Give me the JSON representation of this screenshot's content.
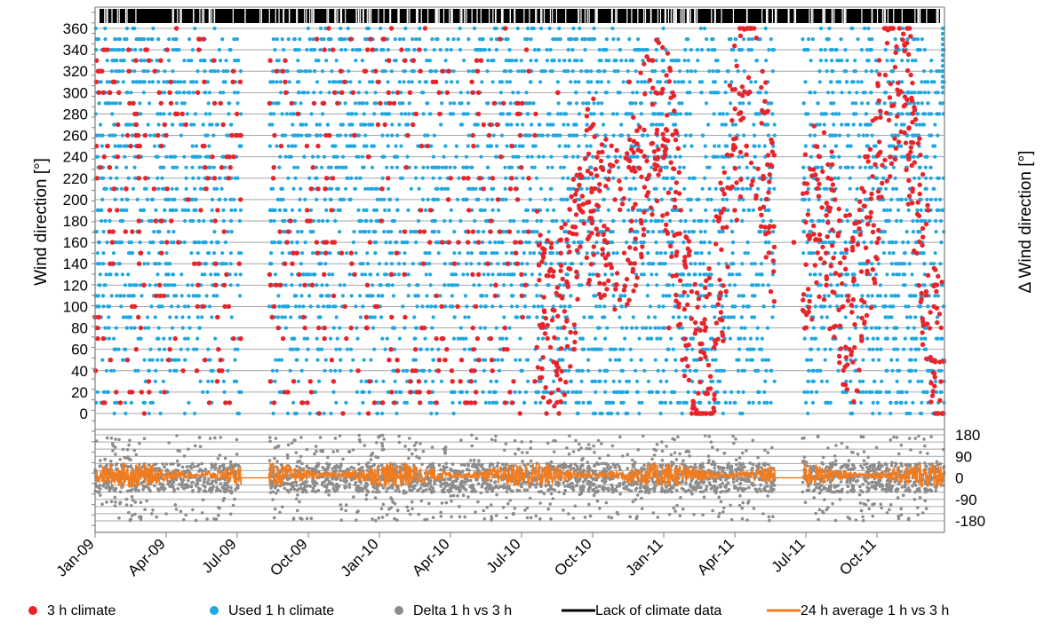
{
  "chart_data": [
    {
      "type": "scatter",
      "panel": "top",
      "ylabel": "Wind direction [°]",
      "ylim": [
        0,
        360
      ],
      "y_ticks": [
        0,
        20,
        40,
        60,
        80,
        100,
        120,
        140,
        160,
        180,
        200,
        220,
        240,
        260,
        280,
        300,
        320,
        340,
        360
      ],
      "xlim": [
        "2009-01-01",
        "2011-12-31"
      ],
      "x_tick_labels": [
        "Jan-09",
        "Apr-09",
        "Jul-09",
        "Oct-09",
        "Jan-10",
        "Apr-10",
        "Jul-10",
        "Oct-10",
        "Jan-11",
        "Apr-11",
        "Jul-11",
        "Oct-11"
      ],
      "grid": true,
      "series": [
        {
          "name": "3 h climate",
          "color": "#e8242b",
          "sampled_points": [
            {
              "x": "2009-01-05",
              "y": 320
            },
            {
              "x": "2009-01-20",
              "y": 300
            },
            {
              "x": "2009-02-10",
              "y": 210
            },
            {
              "x": "2009-03-01",
              "y": 150
            },
            {
              "x": "2009-04-15",
              "y": 280
            },
            {
              "x": "2009-05-20",
              "y": 100
            },
            {
              "x": "2009-06-10",
              "y": 40
            },
            {
              "x": "2009-10-05",
              "y": 180
            },
            {
              "x": "2009-12-01",
              "y": 260
            },
            {
              "x": "2010-02-15",
              "y": 330
            },
            {
              "x": "2010-04-01",
              "y": 200
            },
            {
              "x": "2010-06-01",
              "y": 120
            },
            {
              "x": "2010-08-20",
              "y": 300
            },
            {
              "x": "2010-09-10",
              "y": 60
            },
            {
              "x": "2010-10-15",
              "y": 230
            },
            {
              "x": "2010-11-20",
              "y": 310
            },
            {
              "x": "2010-12-20",
              "y": 330
            },
            {
              "x": "2011-01-10",
              "y": 80
            },
            {
              "x": "2011-03-15",
              "y": 180
            },
            {
              "x": "2011-04-20",
              "y": 250
            },
            {
              "x": "2011-05-20",
              "y": 175
            },
            {
              "x": "2011-06-20",
              "y": 160
            },
            {
              "x": "2011-08-01",
              "y": 120
            },
            {
              "x": "2011-09-20",
              "y": 240
            },
            {
              "x": "2011-11-20",
              "y": 210
            },
            {
              "x": "2011-12-10",
              "y": 190
            }
          ]
        },
        {
          "name": "Used 1 h climate",
          "color": "#1ea7e1",
          "sampled_points": [
            {
              "x": "2009-01-10",
              "y": 250
            },
            {
              "x": "2009-02-20",
              "y": 270
            },
            {
              "x": "2009-04-10",
              "y": 240
            },
            {
              "x": "2009-06-01",
              "y": 200
            },
            {
              "x": "2009-10-20",
              "y": 230
            },
            {
              "x": "2010-01-15",
              "y": 280
            },
            {
              "x": "2010-03-10",
              "y": 250
            },
            {
              "x": "2010-05-15",
              "y": 220
            },
            {
              "x": "2010-07-10",
              "y": 190
            },
            {
              "x": "2010-09-15",
              "y": 0
            },
            {
              "x": "2011-02-01",
              "y": 260
            },
            {
              "x": "2011-05-01",
              "y": 240
            },
            {
              "x": "2011-07-01",
              "y": 200
            },
            {
              "x": "2011-10-15",
              "y": 230
            },
            {
              "x": "2011-12-20",
              "y": 300
            }
          ]
        },
        {
          "name": "Lack of climate data",
          "color": "#000000",
          "description_points": [
            {
              "x": "2009-01-03",
              "y": 360
            },
            {
              "x": "2009-02-05",
              "y": 360
            },
            {
              "x": "2009-05-10",
              "y": 360
            },
            {
              "x": "2009-09-10",
              "y": 360
            },
            {
              "x": "2010-02-01",
              "y": 360
            },
            {
              "x": "2010-07-25",
              "y": 360
            },
            {
              "x": "2011-03-20",
              "y": 360
            },
            {
              "x": "2011-11-10",
              "y": 360
            }
          ]
        }
      ]
    },
    {
      "type": "scatter",
      "panel": "bottom",
      "ylabel": "Δ Wind direction [°]",
      "ylim": [
        -180,
        180
      ],
      "y_ticks": [
        180,
        90,
        0,
        -90,
        -180
      ],
      "xlim": [
        "2009-01-01",
        "2011-12-31"
      ],
      "grid": true,
      "series": [
        {
          "name": "Delta 1 h vs 3 h",
          "color": "#8c8c8c",
          "sampled_points": [
            {
              "x": "2009-02-01",
              "y": 160
            },
            {
              "x": "2009-03-15",
              "y": -150
            },
            {
              "x": "2009-05-01",
              "y": 120
            },
            {
              "x": "2009-10-01",
              "y": -170
            },
            {
              "x": "2010-01-01",
              "y": 170
            },
            {
              "x": "2010-04-15",
              "y": -120
            },
            {
              "x": "2010-06-01",
              "y": 175
            },
            {
              "x": "2010-10-01",
              "y": -160
            },
            {
              "x": "2011-01-01",
              "y": 150
            },
            {
              "x": "2011-04-01",
              "y": -175
            },
            {
              "x": "2011-07-01",
              "y": 165
            },
            {
              "x": "2011-11-15",
              "y": -170
            }
          ]
        },
        {
          "name": "24 h average 1 h vs 3 h",
          "color": "#f07c21",
          "sampled_points": [
            {
              "x": "2009-01-01",
              "y": 10
            },
            {
              "x": "2009-03-01",
              "y": 20
            },
            {
              "x": "2009-05-01",
              "y": 15
            },
            {
              "x": "2009-07-01",
              "y": 5
            },
            {
              "x": "2009-08-15",
              "y": 0
            },
            {
              "x": "2009-09-15",
              "y": 0
            },
            {
              "x": "2009-11-01",
              "y": 20
            },
            {
              "x": "2010-01-01",
              "y": 15
            },
            {
              "x": "2010-04-01",
              "y": 25
            },
            {
              "x": "2010-07-01",
              "y": 10
            },
            {
              "x": "2010-10-01",
              "y": 5
            },
            {
              "x": "2011-01-01",
              "y": 0
            },
            {
              "x": "2011-04-01",
              "y": 10
            },
            {
              "x": "2011-07-01",
              "y": 5
            },
            {
              "x": "2011-09-20",
              "y": 0
            },
            {
              "x": "2011-10-25",
              "y": 0
            },
            {
              "x": "2011-12-31",
              "y": -10
            }
          ]
        }
      ]
    }
  ],
  "legend": {
    "placement": "bottom",
    "items": [
      {
        "label": "3 h climate",
        "marker": "dot",
        "color": "#e8242b"
      },
      {
        "label": "Used 1 h climate",
        "marker": "dot",
        "color": "#1ea7e1"
      },
      {
        "label": "Delta 1 h vs 3 h",
        "marker": "dot",
        "color": "#8c8c8c"
      },
      {
        "label": "Lack of climate data",
        "marker": "line",
        "color": "#000000"
      },
      {
        "label": "24 h average 1 h vs 3 h",
        "marker": "line",
        "color": "#f07c21"
      }
    ]
  }
}
